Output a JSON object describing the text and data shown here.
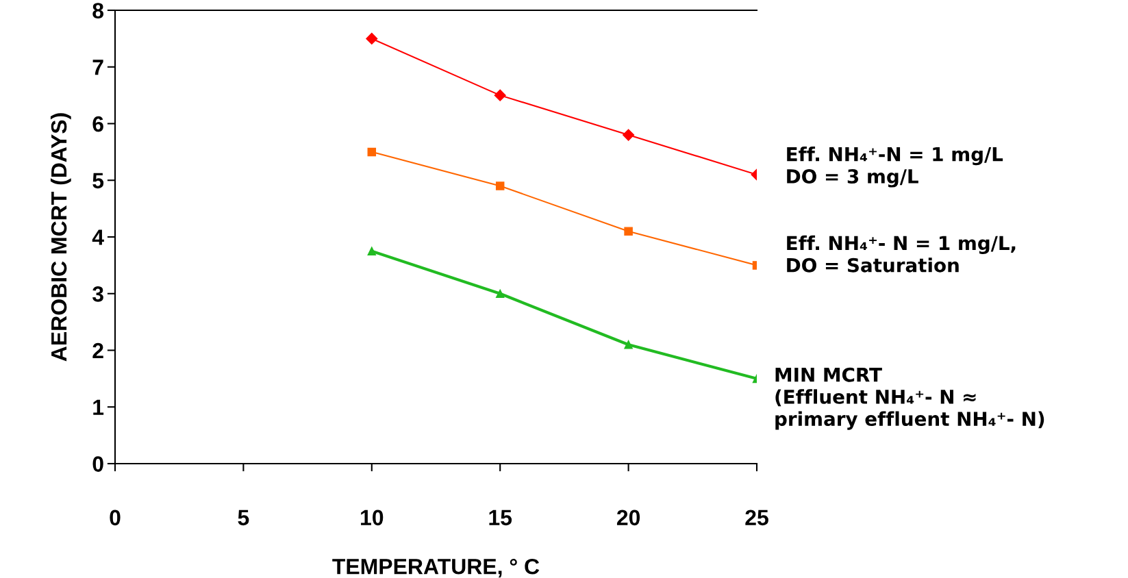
{
  "chart_data": {
    "type": "line",
    "xlabel": "TEMPERATURE, ° C",
    "ylabel": "AEROBIC MCRT (DAYS)",
    "x": [
      10,
      15,
      20,
      25
    ],
    "series": [
      {
        "name": "Eff. NH₄⁺-N = 1 mg/L\nDO = 3 mg/L",
        "color": "#ff0000",
        "marker": "diamond",
        "values": [
          7.5,
          6.5,
          5.8,
          5.1
        ]
      },
      {
        "name": "Eff. NH₄⁺- N = 1 mg/L,\nDO = Saturation",
        "color": "#ff6600",
        "marker": "square",
        "values": [
          5.5,
          4.9,
          4.1,
          3.5
        ]
      },
      {
        "name": "MIN MCRT\n(Effluent NH₄⁺- N ≈\nprimary effluent NH₄⁺- N)",
        "color": "#22bb22",
        "marker": "triangle",
        "values": [
          3.75,
          3.0,
          2.1,
          1.5
        ]
      }
    ],
    "xlim": [
      0,
      25
    ],
    "ylim": [
      0,
      8
    ],
    "xticks": [
      0,
      5,
      10,
      15,
      20,
      25
    ],
    "yticks": [
      0,
      1,
      2,
      3,
      4,
      5,
      6,
      7,
      8
    ],
    "grid": false,
    "legend": false,
    "line_style": "solid"
  }
}
